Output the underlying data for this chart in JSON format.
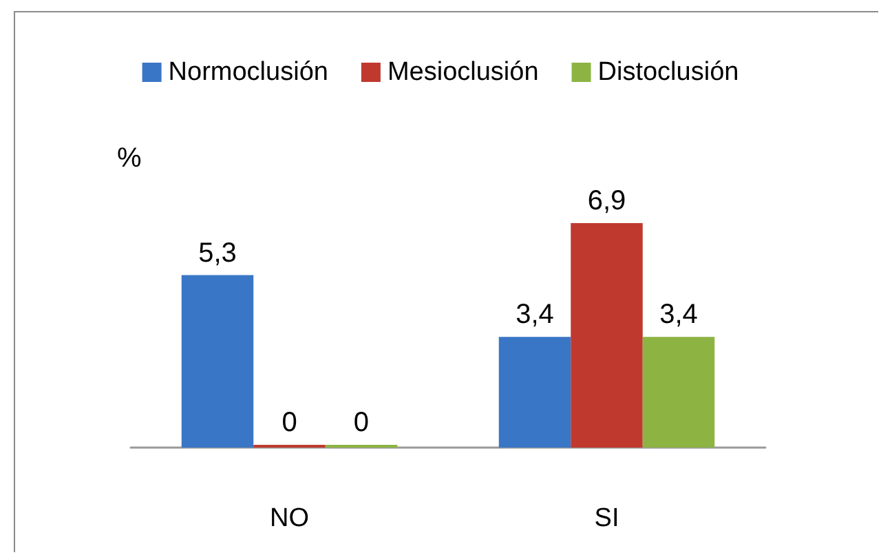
{
  "chart_data": {
    "type": "bar",
    "ylabel": "%",
    "categories": [
      "NO",
      "SI"
    ],
    "series": [
      {
        "name": "Normoclusión",
        "color": "#3a76c6",
        "values": [
          5.3,
          3.4
        ],
        "value_labels": [
          "5,3",
          "3,4"
        ]
      },
      {
        "name": "Mesioclusión",
        "color": "#c0392f",
        "values": [
          0,
          6.9
        ],
        "value_labels": [
          "0",
          "6,9"
        ]
      },
      {
        "name": "Distoclusión",
        "color": "#8db443",
        "values": [
          0,
          3.4
        ],
        "value_labels": [
          "0",
          "3,4"
        ]
      }
    ],
    "legend": "top",
    "grid": false
  }
}
